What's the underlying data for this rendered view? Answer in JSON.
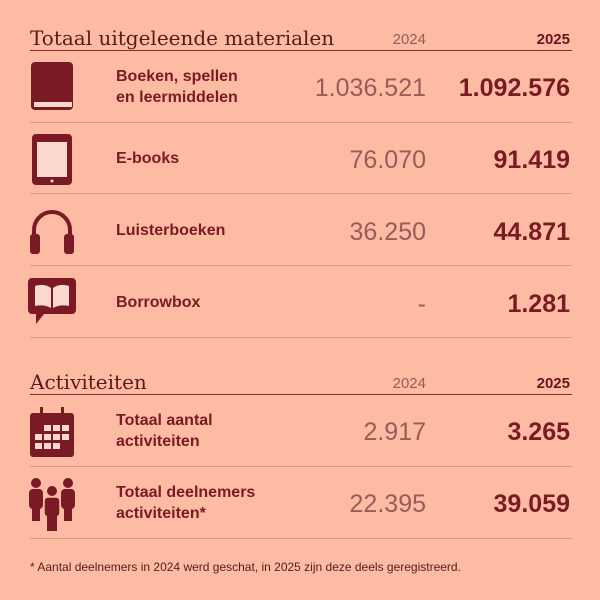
{
  "sections": [
    {
      "title": "Totaal uitgeleende materialen",
      "year_prev": "2024",
      "year_curr": "2025",
      "rows": [
        {
          "icon": "book-icon",
          "label_1": "Boeken, spellen",
          "label_2": "en leermiddelen",
          "v2024": "1.036.521",
          "v2025": "1.092.576"
        },
        {
          "icon": "tablet-icon",
          "label_1": "E-books",
          "label_2": "",
          "v2024": "76.070",
          "v2025": "91.419"
        },
        {
          "icon": "headphones-icon",
          "label_1": "Luisterboeken",
          "label_2": "",
          "v2024": "36.250",
          "v2025": "44.871"
        },
        {
          "icon": "open-book-speech-bubble-icon",
          "label_1": "Borrowbox",
          "label_2": "",
          "v2024": "-",
          "v2025": "1.281"
        }
      ]
    },
    {
      "title": "Activiteiten",
      "year_prev": "2024",
      "year_curr": "2025",
      "rows": [
        {
          "icon": "calendar-icon",
          "label_1": "Totaal aantal",
          "label_2": "activiteiten",
          "v2024": "2.917",
          "v2025": "3.265"
        },
        {
          "icon": "people-group-icon",
          "label_1": "Totaal deelnemers",
          "label_2": "activiteiten*",
          "v2024": "22.395",
          "v2025": "39.059"
        }
      ]
    }
  ],
  "footnote": "* Aantal deelnemers in 2024 werd geschat, in 2025 zijn deze deels geregistreerd.",
  "colors": {
    "background": "#fdbba3",
    "accent": "#7a1a24"
  }
}
